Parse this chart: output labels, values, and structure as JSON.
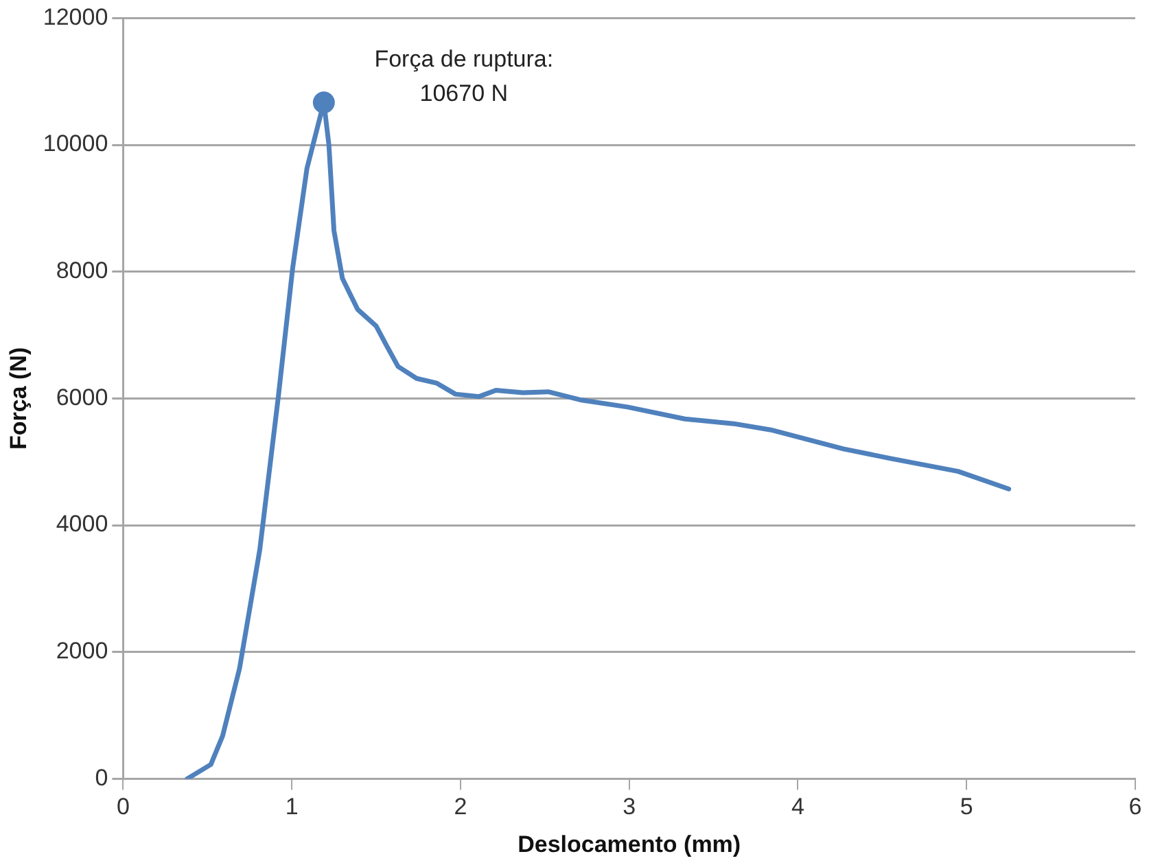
{
  "chart_data": {
    "type": "line",
    "xlabel": "Deslocamento (mm)",
    "ylabel": "Força (N)",
    "series": [
      {
        "color": "#4f81bd",
        "x": [
          0.38,
          0.52,
          0.59,
          0.69,
          0.81,
          0.92,
          1.005,
          1.09,
          1.19,
          1.22,
          1.25,
          1.3,
          1.39,
          1.5,
          1.56,
          1.63,
          1.74,
          1.86,
          1.97,
          2.11,
          2.21,
          2.37,
          2.52,
          2.71,
          2.99,
          3.33,
          3.62,
          3.84,
          4.27,
          4.55,
          4.95,
          5.25
        ],
        "values": [
          0,
          225,
          677,
          1737,
          3609,
          6023,
          8053,
          9632,
          10670,
          10000,
          8647,
          7895,
          7406,
          7143,
          6842,
          6504,
          6316,
          6241,
          6068,
          6030,
          6128,
          6090,
          6105,
          5978,
          5865,
          5677,
          5602,
          5504,
          5204,
          5053,
          4850,
          4572
        ]
      }
    ],
    "xlim": [
      0,
      6
    ],
    "xticks": [
      0,
      1,
      2,
      3,
      4,
      5,
      6
    ],
    "ylim": [
      0,
      12000
    ],
    "yticks": [
      0,
      2000,
      4000,
      6000,
      8000,
      10000,
      12000
    ],
    "grid": "y",
    "legend": false,
    "marker": "none",
    "line_style": "solid",
    "annotations": [
      {
        "text": "Força de ruptura:\n10670 N",
        "x": 1.19,
        "y": 10670
      }
    ]
  }
}
